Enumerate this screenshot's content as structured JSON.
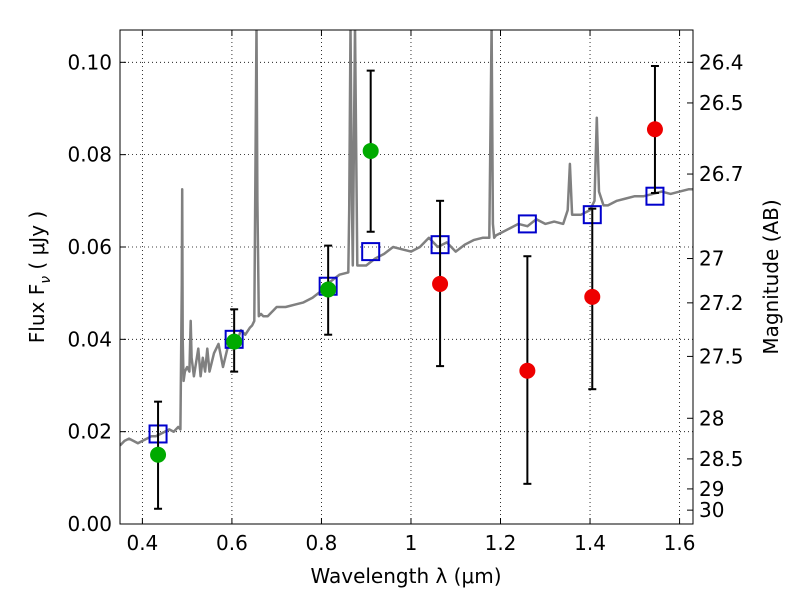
{
  "chart_data": {
    "type": "scatter",
    "xlabel": "Wavelength  λ (μm)",
    "ylabel": "Flux  F",
    "ylabel_sub": "ν",
    "ylabel_unit": "  ( μJy )",
    "y2label": "Magnitude (AB)",
    "xlim": [
      0.35,
      1.63
    ],
    "ylim": [
      0.0,
      0.107
    ],
    "grid": true,
    "grid_style": "dotted",
    "x_ticks": [
      0.4,
      0.6,
      0.8,
      1.0,
      1.2,
      1.4,
      1.6
    ],
    "x_tick_labels": [
      "0.4",
      "0.6",
      "0.8",
      "1",
      "1.2",
      "1.4",
      "1.6"
    ],
    "y_ticks": [
      0.0,
      0.02,
      0.04,
      0.06,
      0.08,
      0.1
    ],
    "y_tick_labels": [
      "0.00",
      "0.02",
      "0.04",
      "0.06",
      "0.08",
      "0.10"
    ],
    "y2_ticks": [
      {
        "flux": 0.003,
        "label": "30"
      },
      {
        "flux": 0.0076,
        "label": "29"
      },
      {
        "flux": 0.0141,
        "label": "28.5"
      },
      {
        "flux": 0.0229,
        "label": "28"
      },
      {
        "flux": 0.0363,
        "label": "27.5"
      },
      {
        "flux": 0.0479,
        "label": "27.2"
      },
      {
        "flux": 0.0575,
        "label": "27"
      },
      {
        "flux": 0.0758,
        "label": "26.7"
      },
      {
        "flux": 0.0912,
        "label": "26.5"
      },
      {
        "flux": 0.1,
        "label": "26.4"
      }
    ],
    "colors": {
      "spectrum": "#808080",
      "model": "#0000cc",
      "green": "#00aa00",
      "red": "#ee0000",
      "errorbar": "#000000"
    },
    "series": [
      {
        "marker": "line",
        "color": "#808080",
        "x": [
          0.35,
          0.36,
          0.37,
          0.38,
          0.39,
          0.4,
          0.41,
          0.42,
          0.43,
          0.44,
          0.45,
          0.46,
          0.47,
          0.48,
          0.485,
          0.488,
          0.489,
          0.49,
          0.492,
          0.495,
          0.5,
          0.505,
          0.508,
          0.51,
          0.515,
          0.52,
          0.525,
          0.53,
          0.535,
          0.54,
          0.545,
          0.55,
          0.56,
          0.57,
          0.58,
          0.59,
          0.6,
          0.61,
          0.62,
          0.63,
          0.64,
          0.645,
          0.65,
          0.652,
          0.655,
          0.657,
          0.66,
          0.665,
          0.67,
          0.68,
          0.69,
          0.7,
          0.72,
          0.74,
          0.76,
          0.78,
          0.8,
          0.82,
          0.84,
          0.86,
          0.862,
          0.865,
          0.868,
          0.87,
          0.875,
          0.88,
          0.9,
          0.92,
          0.94,
          0.96,
          0.98,
          1.0,
          1.02,
          1.04,
          1.06,
          1.08,
          1.1,
          1.12,
          1.14,
          1.16,
          1.175,
          1.18,
          1.183,
          1.186,
          1.19,
          1.2,
          1.22,
          1.24,
          1.26,
          1.28,
          1.3,
          1.32,
          1.34,
          1.35,
          1.355,
          1.36,
          1.38,
          1.4,
          1.41,
          1.415,
          1.42,
          1.43,
          1.44,
          1.46,
          1.48,
          1.5,
          1.52,
          1.54,
          1.56,
          1.58,
          1.6,
          1.62,
          1.63
        ],
        "y": [
          0.017,
          0.018,
          0.0185,
          0.018,
          0.0175,
          0.018,
          0.0185,
          0.019,
          0.019,
          0.0195,
          0.02,
          0.0205,
          0.02,
          0.021,
          0.0205,
          0.052,
          0.0725,
          0.04,
          0.031,
          0.033,
          0.034,
          0.033,
          0.044,
          0.036,
          0.032,
          0.035,
          0.038,
          0.032,
          0.036,
          0.033,
          0.038,
          0.033,
          0.037,
          0.039,
          0.034,
          0.038,
          0.04,
          0.039,
          0.042,
          0.041,
          0.0425,
          0.043,
          0.044,
          0.07,
          0.108,
          0.07,
          0.045,
          0.0455,
          0.045,
          0.045,
          0.046,
          0.047,
          0.047,
          0.0475,
          0.048,
          0.049,
          0.0505,
          0.0525,
          0.054,
          0.0545,
          0.068,
          0.108,
          0.07,
          0.056,
          0.108,
          0.056,
          0.056,
          0.0575,
          0.0585,
          0.06,
          0.0595,
          0.059,
          0.06,
          0.062,
          0.06,
          0.061,
          0.059,
          0.0605,
          0.0615,
          0.062,
          0.062,
          0.108,
          0.065,
          0.062,
          0.0625,
          0.063,
          0.064,
          0.065,
          0.0645,
          0.066,
          0.065,
          0.0655,
          0.065,
          0.068,
          0.078,
          0.067,
          0.067,
          0.068,
          0.07,
          0.088,
          0.072,
          0.069,
          0.069,
          0.07,
          0.0705,
          0.071,
          0.071,
          0.0715,
          0.072,
          0.0715,
          0.072,
          0.0725,
          0.0725
        ]
      },
      {
        "marker": "open-square",
        "color": "#0000cc",
        "x": [
          0.435,
          0.605,
          0.815,
          0.91,
          1.065,
          1.26,
          1.405,
          1.545
        ],
        "y": [
          0.0195,
          0.04,
          0.0515,
          0.059,
          0.0605,
          0.065,
          0.067,
          0.071
        ]
      },
      {
        "marker": "filled-circle",
        "color": "#00aa00",
        "x": [
          0.435,
          0.605,
          0.815,
          0.91
        ],
        "y": [
          0.015,
          0.0395,
          0.0508,
          0.0808
        ],
        "yerr_low": [
          0.0033,
          0.033,
          0.041,
          0.0633
        ],
        "yerr_high": [
          0.0265,
          0.0465,
          0.0603,
          0.0982
        ]
      },
      {
        "marker": "filled-circle",
        "color": "#ee0000",
        "x": [
          1.065,
          1.26,
          1.405,
          1.545
        ],
        "y": [
          0.052,
          0.0332,
          0.0492,
          0.0855
        ],
        "yerr_low": [
          0.0342,
          0.0087,
          0.0292,
          0.0717
        ],
        "yerr_high": [
          0.07,
          0.058,
          0.0683,
          0.0992
        ]
      }
    ]
  }
}
